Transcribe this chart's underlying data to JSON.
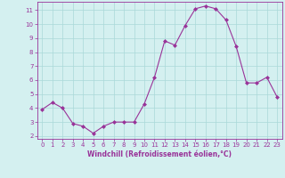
{
  "x": [
    0,
    1,
    2,
    3,
    4,
    5,
    6,
    7,
    8,
    9,
    10,
    11,
    12,
    13,
    14,
    15,
    16,
    17,
    18,
    19,
    20,
    21,
    22,
    23
  ],
  "y": [
    3.9,
    4.4,
    4.0,
    2.9,
    2.7,
    2.2,
    2.7,
    3.0,
    3.0,
    3.0,
    4.3,
    6.2,
    8.8,
    8.5,
    9.9,
    11.1,
    11.3,
    11.1,
    10.3,
    8.4,
    5.8,
    5.8,
    6.2,
    4.8
  ],
  "line_color": "#993399",
  "marker": "D",
  "marker_size": 2,
  "bg_color": "#d4f0f0",
  "grid_color": "#aad8d8",
  "spine_color": "#993399",
  "tick_color": "#993399",
  "label_color": "#993399",
  "xlabel": "Windchill (Refroidissement éolien,°C)",
  "ylim": [
    1.8,
    11.6
  ],
  "xlim": [
    -0.5,
    23.5
  ],
  "yticks": [
    2,
    3,
    4,
    5,
    6,
    7,
    8,
    9,
    10,
    11
  ],
  "xticks": [
    0,
    1,
    2,
    3,
    4,
    5,
    6,
    7,
    8,
    9,
    10,
    11,
    12,
    13,
    14,
    15,
    16,
    17,
    18,
    19,
    20,
    21,
    22,
    23
  ],
  "tick_labelsize": 5,
  "xlabel_fontsize": 5.5,
  "linewidth": 0.8
}
